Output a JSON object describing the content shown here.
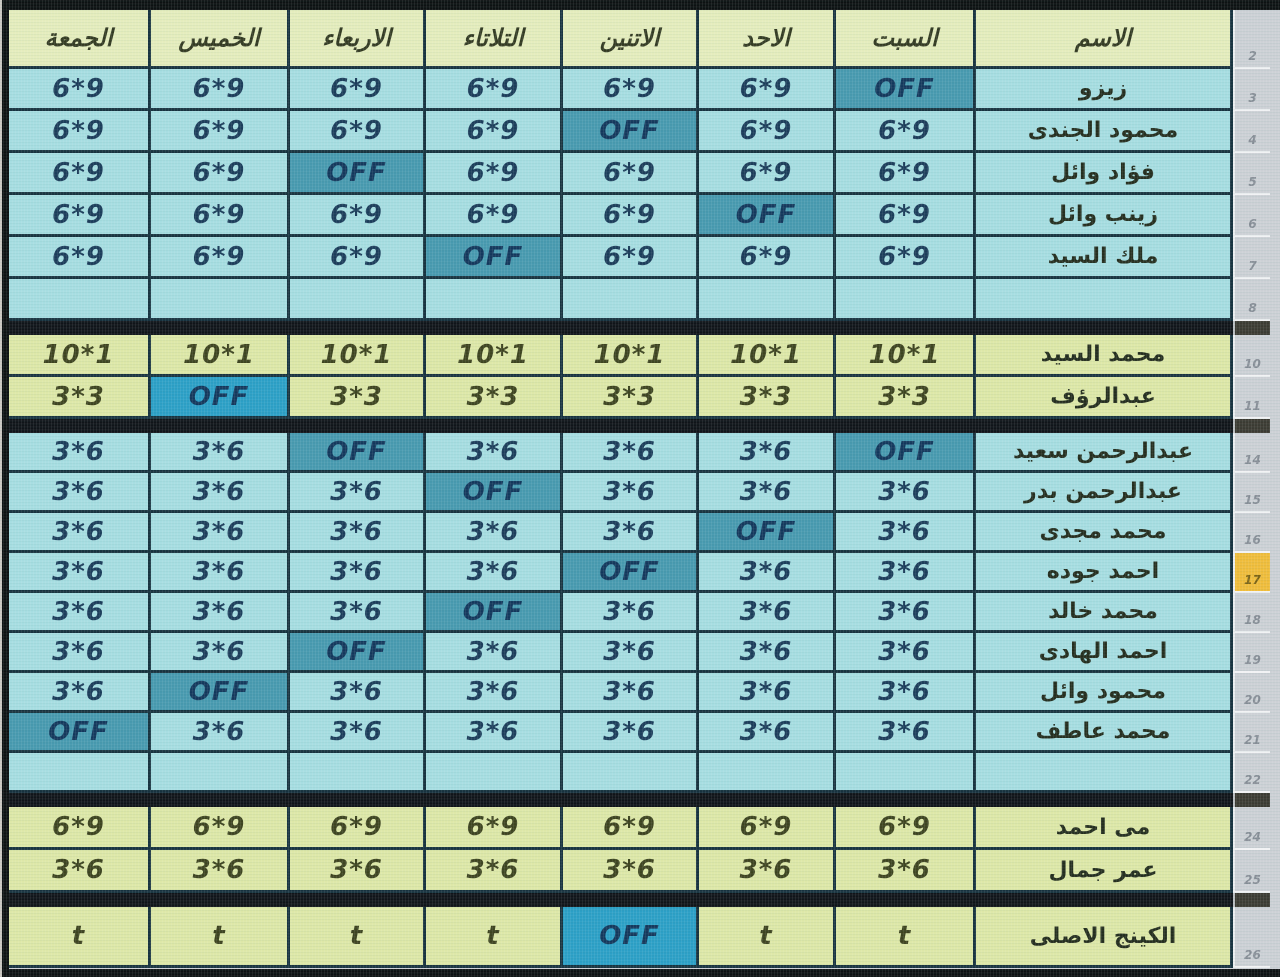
{
  "header_row_num": "2",
  "columns": [
    "الجمعة",
    "الخميس",
    "الاربعاء",
    "التلاتاء",
    "الاتنين",
    "الاحد",
    "السبت",
    "الاسم"
  ],
  "off_label": "OFF",
  "colors": {
    "cyan_row": "#a6dde1",
    "yellow_row": "#dde7a7",
    "header_row": "#e4ecbc",
    "off_in_cyan_section": "#4799af",
    "off_in_yellow_section": "#2b9fc6",
    "grid_border": "#17323f",
    "section_separator": "#101419",
    "value_text_cyan": "#1b3c5a",
    "value_text_yellow": "#3d431f",
    "row_number_strip": "#ccd0d5",
    "active_row_number_highlight": "#efbc3a"
  },
  "sections": [
    {
      "palette": "cyan",
      "rows": [
        {
          "row_num": "3",
          "name": "زيزو",
          "cells": [
            "6*9",
            "6*9",
            "6*9",
            "6*9",
            "6*9",
            "6*9",
            "OFF"
          ]
        },
        {
          "row_num": "4",
          "name": "محمود الجندى",
          "cells": [
            "6*9",
            "6*9",
            "6*9",
            "6*9",
            "OFF",
            "6*9",
            "6*9"
          ]
        },
        {
          "row_num": "5",
          "name": "فؤاد وائل",
          "cells": [
            "6*9",
            "6*9",
            "OFF",
            "6*9",
            "6*9",
            "6*9",
            "6*9"
          ]
        },
        {
          "row_num": "6",
          "name": "زينب وائل",
          "cells": [
            "6*9",
            "6*9",
            "6*9",
            "6*9",
            "6*9",
            "OFF",
            "6*9"
          ]
        },
        {
          "row_num": "7",
          "name": "ملك السيد",
          "cells": [
            "6*9",
            "6*9",
            "6*9",
            "OFF",
            "6*9",
            "6*9",
            "6*9"
          ]
        },
        {
          "row_num": "8",
          "name": "",
          "empty": true,
          "cells": [
            "",
            "",
            "",
            "",
            "",
            "",
            ""
          ]
        }
      ]
    },
    {
      "palette": "yellow",
      "rows": [
        {
          "row_num": "10",
          "name": "محمد السيد",
          "cells": [
            "10*1",
            "10*1",
            "10*1",
            "10*1",
            "10*1",
            "10*1",
            "10*1"
          ]
        },
        {
          "row_num": "11",
          "name": "عبدالرؤف",
          "cells": [
            "3*3",
            "OFF",
            "3*3",
            "3*3",
            "3*3",
            "3*3",
            "3*3"
          ]
        }
      ]
    },
    {
      "palette": "cyan",
      "rows": [
        {
          "row_num": "14",
          "name": "عبدالرحمن سعيد",
          "cells": [
            "3*6",
            "3*6",
            "OFF",
            "3*6",
            "3*6",
            "3*6",
            "OFF"
          ]
        },
        {
          "row_num": "15",
          "name": "عبدالرحمن بدر",
          "cells": [
            "3*6",
            "3*6",
            "3*6",
            "OFF",
            "3*6",
            "3*6",
            "3*6"
          ]
        },
        {
          "row_num": "16",
          "name": "محمد مجدى",
          "cells": [
            "3*6",
            "3*6",
            "3*6",
            "3*6",
            "3*6",
            "OFF",
            "3*6"
          ]
        },
        {
          "row_num": "17",
          "name": "احمد جوده",
          "highlight": true,
          "cells": [
            "3*6",
            "3*6",
            "3*6",
            "3*6",
            "OFF",
            "3*6",
            "3*6"
          ]
        },
        {
          "row_num": "18",
          "name": "محمد خالد",
          "cells": [
            "3*6",
            "3*6",
            "3*6",
            "OFF",
            "3*6",
            "3*6",
            "3*6"
          ]
        },
        {
          "row_num": "19",
          "name": "احمد الهادى",
          "cells": [
            "3*6",
            "3*6",
            "OFF",
            "3*6",
            "3*6",
            "3*6",
            "3*6"
          ]
        },
        {
          "row_num": "20",
          "name": "محمود وائل",
          "cells": [
            "3*6",
            "OFF",
            "3*6",
            "3*6",
            "3*6",
            "3*6",
            "3*6"
          ]
        },
        {
          "row_num": "21",
          "name": "محمد عاطف",
          "cells": [
            "OFF",
            "3*6",
            "3*6",
            "3*6",
            "3*6",
            "3*6",
            "3*6"
          ]
        },
        {
          "row_num": "22",
          "name": "",
          "empty": true,
          "cells": [
            "",
            "",
            "",
            "",
            "",
            "",
            ""
          ]
        }
      ]
    },
    {
      "palette": "yellow",
      "rows": [
        {
          "row_num": "24",
          "name": "مى احمد",
          "cells": [
            "6*9",
            "6*9",
            "6*9",
            "6*9",
            "6*9",
            "6*9",
            "6*9"
          ]
        },
        {
          "row_num": "25",
          "name": "عمر جمال",
          "cells": [
            "3*6",
            "3*6",
            "3*6",
            "3*6",
            "3*6",
            "3*6",
            "3*6"
          ]
        }
      ]
    },
    {
      "palette": "yellow",
      "rows": [
        {
          "row_num": "26",
          "name": "الكينج الاصلى",
          "tall": true,
          "cells": [
            "t",
            "t",
            "t",
            "t",
            "OFF",
            "t",
            "t"
          ]
        }
      ]
    }
  ]
}
